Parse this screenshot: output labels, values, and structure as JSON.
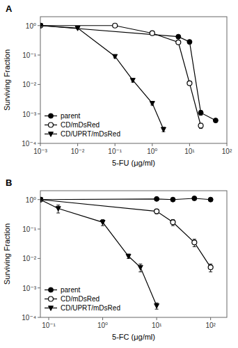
{
  "chart_data": [
    {
      "type": "line",
      "title": "A",
      "x_label": "5-FU (μg/ml)",
      "y_label": "Surviving Fraction",
      "log": true,
      "grid": false,
      "legend": "lower left",
      "xlim": [
        0.001,
        100
      ],
      "ylim": [
        0.0001,
        2
      ],
      "xticks": [
        {
          "value": 0.001,
          "label": "10⁻³"
        },
        {
          "value": 0.01,
          "label": "10⁻²"
        },
        {
          "value": 0.1,
          "label": "10⁻¹"
        },
        {
          "value": 1,
          "label": "10⁰"
        },
        {
          "value": 10,
          "label": "10¹"
        },
        {
          "value": 100,
          "label": "10²"
        }
      ],
      "yticks": [
        {
          "value": 0.0001,
          "label": "10⁻⁴"
        },
        {
          "value": 0.001,
          "label": "10⁻³"
        },
        {
          "value": 0.01,
          "label": "10⁻²"
        },
        {
          "value": 0.1,
          "label": "10⁻¹"
        },
        {
          "value": 1,
          "label": "10⁰"
        }
      ],
      "series": [
        {
          "name": "parent",
          "color": "#000000",
          "marker": "circle",
          "line_style": "solid",
          "x": [
            0.001,
            5.0,
            10,
            20,
            50
          ],
          "values": [
            1.0,
            0.42,
            0.28,
            0.0011,
            0.0006
          ],
          "errors": [
            0.02,
            0.03,
            0.04,
            0.0002,
            8e-05
          ]
        },
        {
          "name": "CD/mDsRed",
          "color": "#000000",
          "marker": "open-circle",
          "line_style": "solid",
          "x": [
            0.001,
            0.1,
            1.0,
            5.0,
            10,
            20
          ],
          "values": [
            1.0,
            1.0,
            0.55,
            0.27,
            0.011,
            0.0004
          ],
          "errors": [
            0.02,
            0.02,
            0.04,
            0.03,
            0.0015,
            8e-05
          ]
        },
        {
          "name": "CD/UPRT/mDsRed",
          "color": "#000000",
          "marker": "triangle-down",
          "line_style": "solid",
          "x": [
            0.001,
            0.01,
            0.1,
            0.3,
            1.0,
            2.0
          ],
          "values": [
            1.0,
            0.82,
            0.09,
            0.014,
            0.0023,
            0.0003
          ],
          "errors": [
            0.02,
            0.04,
            0.01,
            0.002,
            0.0003,
            5e-05
          ]
        }
      ]
    },
    {
      "type": "line",
      "title": "B",
      "x_label": "5-FC (μg/ml)",
      "y_label": "Surviving Fraction",
      "log": true,
      "grid": false,
      "legend": "lower left",
      "xlim": [
        0.07,
        200
      ],
      "ylim": [
        0.0001,
        2
      ],
      "xticks": [
        {
          "value": 0.1,
          "label": "10⁻¹"
        },
        {
          "value": 1,
          "label": "10⁰"
        },
        {
          "value": 10,
          "label": "10¹"
        },
        {
          "value": 100,
          "label": "10²"
        }
      ],
      "yticks": [
        {
          "value": 0.0001,
          "label": "10⁻⁴"
        },
        {
          "value": 0.001,
          "label": "10⁻³"
        },
        {
          "value": 0.01,
          "label": "10⁻²"
        },
        {
          "value": 0.1,
          "label": "10⁻¹"
        },
        {
          "value": 1,
          "label": "10⁰"
        }
      ],
      "series": [
        {
          "name": "parent",
          "color": "#000000",
          "marker": "circle",
          "line_style": "solid",
          "x": [
            0.07,
            10,
            20,
            50,
            100
          ],
          "values": [
            1.0,
            1.05,
            1.0,
            1.1,
            1.0
          ],
          "errors": [
            0.04,
            0.12,
            0.1,
            0.12,
            0.1
          ]
        },
        {
          "name": "CD/mDsRed",
          "color": "#000000",
          "marker": "open-circle",
          "line_style": "solid",
          "x": [
            0.07,
            10,
            20,
            50,
            100
          ],
          "values": [
            1.0,
            0.4,
            0.17,
            0.035,
            0.005
          ],
          "errors": [
            0.04,
            0.07,
            0.04,
            0.01,
            0.0015
          ]
        },
        {
          "name": "CD/UPRT/mDsRed",
          "color": "#000000",
          "marker": "triangle-down",
          "line_style": "solid",
          "x": [
            0.07,
            0.15,
            1.0,
            3.0,
            5.0,
            10
          ],
          "values": [
            1.0,
            0.5,
            0.17,
            0.012,
            0.005,
            0.00025
          ],
          "errors": [
            0.04,
            0.15,
            0.04,
            0.002,
            0.0015,
            6e-05
          ]
        }
      ]
    }
  ]
}
